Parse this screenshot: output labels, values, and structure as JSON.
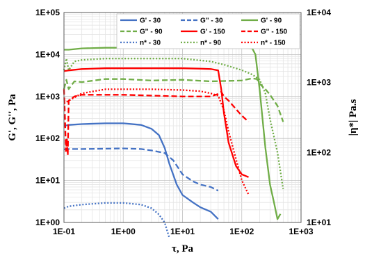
{
  "chart_data": {
    "type": "line",
    "title": "",
    "xlabel": "τ, Pa",
    "ylabel": "G', G'', Pa",
    "y2label": "|η*| Pa.s",
    "x_scale": "log",
    "y_scale": "log",
    "y2_scale": "log",
    "xlim": [
      0.1,
      1000
    ],
    "ylim": [
      1,
      100000
    ],
    "y2lim": [
      10,
      10000
    ],
    "x_ticks": [
      "1E-01",
      "1E+00",
      "1E+01",
      "1E+02",
      "1E+03"
    ],
    "y_ticks": [
      "1E+00",
      "1E+01",
      "1E+02",
      "1E+03",
      "1E+04",
      "1E+05"
    ],
    "y2_ticks": [
      "1E+01",
      "1E+02",
      "1E+03",
      "1E+04"
    ],
    "grid": true,
    "legend_position": "top",
    "colors": {
      "blue": "#4472C4",
      "green": "#70AD47",
      "red": "#FF0000"
    },
    "series": [
      {
        "name": "G' - 30",
        "axis": "left",
        "color": "#4472C4",
        "style": "solid",
        "x": [
          0.1,
          0.12,
          0.2,
          0.5,
          1,
          2,
          3,
          4,
          5,
          6,
          8,
          10,
          15,
          20,
          30,
          40
        ],
        "y": [
          200,
          210,
          220,
          230,
          230,
          210,
          170,
          120,
          60,
          25,
          8,
          4.5,
          3,
          2.3,
          1.8,
          1.2
        ]
      },
      {
        "name": "G'' - 30",
        "axis": "left",
        "color": "#4472C4",
        "style": "dash",
        "x": [
          0.1,
          0.12,
          0.2,
          0.5,
          1,
          2,
          3,
          5,
          7,
          10,
          15,
          20,
          30,
          40
        ],
        "y": [
          55,
          56,
          56,
          57,
          58,
          56,
          52,
          45,
          30,
          14,
          9.5,
          8,
          7,
          5.7
        ]
      },
      {
        "name": "G' - 90",
        "axis": "left",
        "color": "#70AD47",
        "style": "solid",
        "x": [
          0.1,
          0.12,
          0.2,
          0.5,
          1,
          3,
          10,
          30,
          100,
          150,
          170,
          200,
          250,
          300,
          350,
          400,
          450
        ],
        "y": [
          13000,
          13000,
          14000,
          14500,
          14500,
          14500,
          14500,
          14500,
          14500,
          14000,
          10000,
          1500,
          60,
          8,
          3,
          1.2,
          1.6
        ]
      },
      {
        "name": "G'' - 90",
        "axis": "left",
        "color": "#70AD47",
        "style": "dash",
        "x": [
          0.1,
          0.11,
          0.12,
          0.15,
          0.2,
          0.5,
          1,
          3,
          10,
          30,
          100,
          150,
          180,
          200,
          250,
          300,
          400,
          500
        ],
        "y": [
          1500,
          2500,
          1500,
          2300,
          2200,
          2600,
          2600,
          2400,
          2500,
          2300,
          2400,
          2700,
          2600,
          2000,
          1500,
          1100,
          600,
          250
        ]
      },
      {
        "name": "G' - 150",
        "axis": "left",
        "color": "#FF0000",
        "style": "solid",
        "x": [
          0.1,
          0.12,
          0.2,
          0.5,
          1,
          3,
          10,
          20,
          30,
          40,
          45,
          50,
          60,
          80,
          100,
          130
        ],
        "y": [
          4000,
          4200,
          4500,
          4700,
          4700,
          4700,
          4700,
          4600,
          4500,
          4200,
          1500,
          400,
          80,
          22,
          14,
          12
        ]
      },
      {
        "name": "G'' - 150",
        "axis": "left",
        "color": "#FF0000",
        "style": "dash",
        "x": [
          0.1,
          0.104,
          0.108,
          0.112,
          0.116,
          0.12,
          0.15,
          0.2,
          0.5,
          1,
          3,
          10,
          20,
          30,
          40,
          45,
          50,
          60,
          80,
          100,
          130
        ],
        "y": [
          1500,
          300,
          50,
          100,
          40,
          800,
          1000,
          1100,
          1100,
          1100,
          1050,
          1000,
          1000,
          1000,
          1150,
          1300,
          1000,
          800,
          500,
          350,
          250
        ]
      },
      {
        "name": "n* - 30",
        "axis": "right",
        "color": "#4472C4",
        "style": "dot",
        "x": [
          0.1,
          0.12,
          0.2,
          0.5,
          1,
          2,
          3,
          4,
          5,
          6
        ],
        "y": [
          16,
          17,
          18,
          19,
          19,
          18,
          16,
          13,
          10,
          6
        ]
      },
      {
        "name": "n* - 90",
        "axis": "right",
        "color": "#70AD47",
        "style": "dot",
        "x": [
          0.1,
          0.11,
          0.12,
          0.15,
          0.2,
          0.5,
          1,
          3,
          10,
          30,
          50,
          100,
          150,
          200,
          250,
          300,
          400,
          500
        ],
        "y": [
          1500,
          2200,
          1500,
          2000,
          2100,
          2200,
          2200,
          2200,
          2200,
          2000,
          1800,
          1500,
          1300,
          1100,
          700,
          300,
          100,
          30
        ]
      },
      {
        "name": "n* - 150",
        "axis": "right",
        "color": "#FF0000",
        "style": "dot",
        "x": [
          0.1,
          0.12,
          0.2,
          0.5,
          1,
          3,
          10,
          20,
          30,
          40,
          50,
          60,
          80,
          100,
          130
        ],
        "y": [
          500,
          550,
          700,
          800,
          800,
          800,
          780,
          750,
          700,
          650,
          400,
          200,
          80,
          40,
          25
        ]
      }
    ]
  }
}
